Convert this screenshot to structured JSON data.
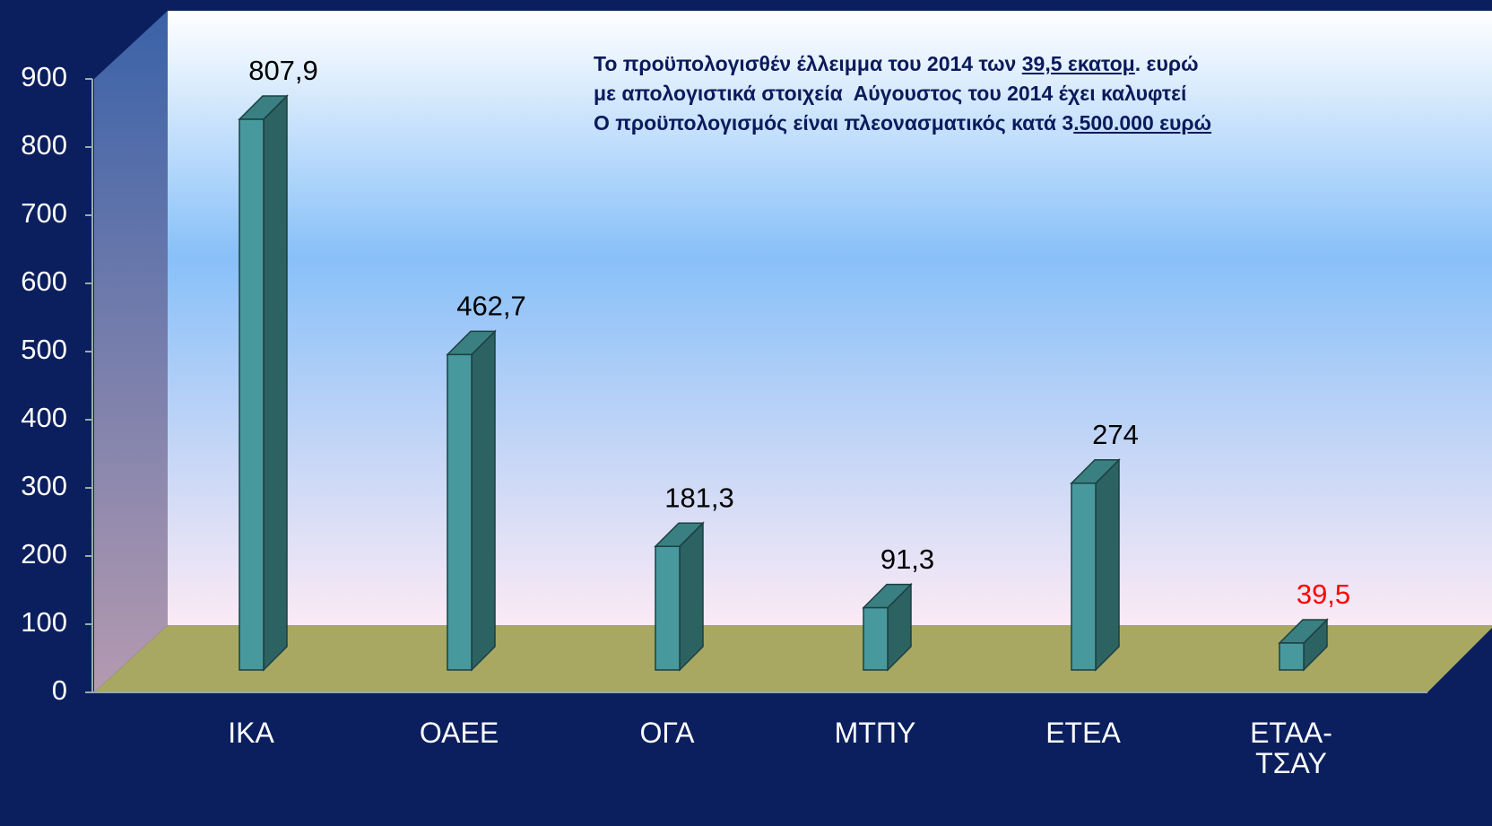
{
  "chart_data": {
    "type": "bar3d",
    "categories": [
      "ΙΚΑ",
      "ΟΑΕΕ",
      "ΟΓΑ",
      "ΜΤΠΥ",
      "ΕΤΕΑ",
      "ΕΤΑΑ-ΤΣΑΥ"
    ],
    "values": [
      807.9,
      462.7,
      181.3,
      91.3,
      274,
      39.5
    ],
    "value_labels": [
      "807,9",
      "462,7",
      "181,3",
      "91,3",
      "274",
      "39,5"
    ],
    "value_label_colors": [
      "#000000",
      "#000000",
      "#000000",
      "#000000",
      "#000000",
      "#ff0000"
    ],
    "color": "#48999e",
    "ylim": [
      0,
      900
    ],
    "yticks": [
      0,
      100,
      200,
      300,
      400,
      500,
      600,
      700,
      800,
      900
    ],
    "annotation": [
      [
        {
          "text": "Το προϋπολογισθέν έλλειμμα του 2014 των ",
          "underline": false
        },
        {
          "text": "39,5 εκατομ",
          "underline": true
        },
        {
          "text": ". ευρώ",
          "underline": false
        }
      ],
      [
        {
          "text": "με απολογιστικά στοιχεία  Αύγουστος του 2014 έχει καλυφτεί",
          "underline": false
        }
      ],
      [
        {
          "text": "Ο προϋπολογισμός είναι πλεονασματικός κατά 3",
          "underline": false
        },
        {
          "text": ".500.000 ευρώ",
          "underline": true
        }
      ]
    ]
  }
}
